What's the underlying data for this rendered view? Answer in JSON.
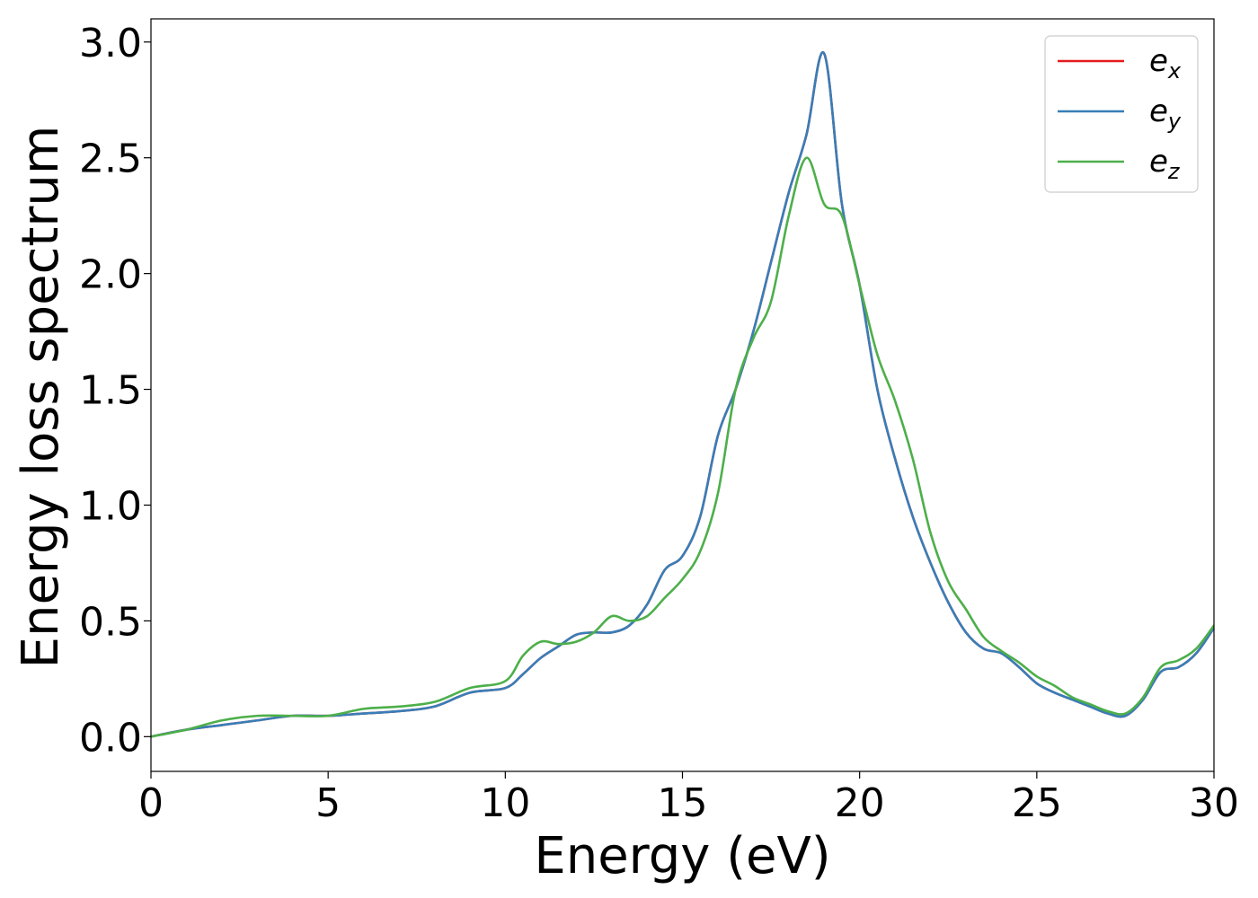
{
  "chart_data": {
    "type": "line",
    "xlabel": "Energy (eV)",
    "ylabel": "Energy loss spectrum",
    "xlim": [
      0,
      30
    ],
    "ylim": [
      -0.15,
      3.1
    ],
    "xticks": [
      0,
      5,
      10,
      15,
      20,
      25,
      30
    ],
    "xtick_labels": [
      "0",
      "5",
      "10",
      "15",
      "20",
      "25",
      "30"
    ],
    "yticks": [
      0.0,
      0.5,
      1.0,
      1.5,
      2.0,
      2.5,
      3.0
    ],
    "ytick_labels": [
      "0.0",
      "0.5",
      "1.0",
      "1.5",
      "2.0",
      "2.5",
      "3.0"
    ],
    "grid": false,
    "legend_position": "top-right",
    "x": [
      0,
      1,
      2,
      3,
      4,
      5,
      6,
      7,
      8,
      9,
      10,
      10.5,
      11,
      11.5,
      12,
      12.5,
      13,
      13.5,
      14,
      14.5,
      15,
      15.5,
      16,
      16.5,
      17,
      17.5,
      18,
      18.5,
      19,
      19.5,
      20,
      20.5,
      21,
      21.5,
      22,
      22.5,
      23,
      23.5,
      24,
      24.5,
      25,
      25.5,
      26,
      26.5,
      27,
      27.5,
      28,
      28.5,
      29,
      29.5,
      30
    ],
    "series": [
      {
        "name": "e",
        "subscript": "x",
        "color": "#e41a1c",
        "values": [
          0.0,
          0.03,
          0.05,
          0.07,
          0.09,
          0.09,
          0.1,
          0.11,
          0.13,
          0.19,
          0.21,
          0.27,
          0.34,
          0.39,
          0.44,
          0.45,
          0.45,
          0.48,
          0.57,
          0.72,
          0.78,
          0.95,
          1.3,
          1.5,
          1.75,
          2.05,
          2.35,
          2.6,
          2.95,
          2.3,
          1.95,
          1.5,
          1.2,
          0.95,
          0.75,
          0.58,
          0.45,
          0.38,
          0.36,
          0.3,
          0.23,
          0.19,
          0.16,
          0.13,
          0.1,
          0.09,
          0.16,
          0.28,
          0.3,
          0.36,
          0.47
        ]
      },
      {
        "name": "e",
        "subscript": "y",
        "color": "#377eb8",
        "values": [
          0.0,
          0.03,
          0.05,
          0.07,
          0.09,
          0.09,
          0.1,
          0.11,
          0.13,
          0.19,
          0.21,
          0.27,
          0.34,
          0.39,
          0.44,
          0.45,
          0.45,
          0.48,
          0.57,
          0.72,
          0.78,
          0.95,
          1.3,
          1.5,
          1.75,
          2.05,
          2.35,
          2.6,
          2.95,
          2.3,
          1.95,
          1.5,
          1.2,
          0.95,
          0.75,
          0.58,
          0.45,
          0.38,
          0.36,
          0.3,
          0.23,
          0.19,
          0.16,
          0.13,
          0.1,
          0.09,
          0.16,
          0.28,
          0.3,
          0.36,
          0.47
        ]
      },
      {
        "name": "e",
        "subscript": "z",
        "color": "#4daf4a",
        "values": [
          0.0,
          0.03,
          0.07,
          0.09,
          0.09,
          0.09,
          0.12,
          0.13,
          0.15,
          0.21,
          0.24,
          0.35,
          0.41,
          0.4,
          0.41,
          0.45,
          0.52,
          0.5,
          0.52,
          0.6,
          0.68,
          0.8,
          1.05,
          1.5,
          1.72,
          1.88,
          2.25,
          2.5,
          2.3,
          2.25,
          1.95,
          1.65,
          1.45,
          1.2,
          0.88,
          0.67,
          0.55,
          0.43,
          0.37,
          0.32,
          0.26,
          0.22,
          0.17,
          0.14,
          0.11,
          0.1,
          0.17,
          0.3,
          0.33,
          0.38,
          0.48
        ]
      }
    ]
  }
}
